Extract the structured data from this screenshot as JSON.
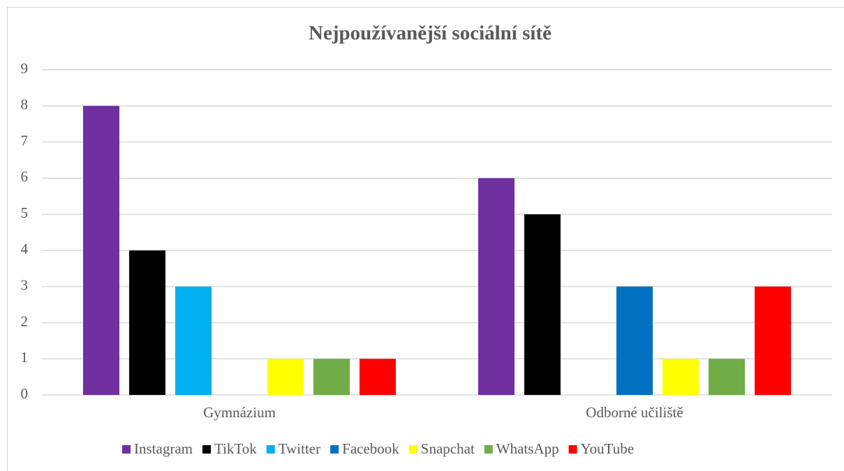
{
  "chart_data": {
    "type": "bar",
    "title": "Nejpoužívanější sociální sítě",
    "categories": [
      "Gymnázium",
      "Odborné učiliště"
    ],
    "series": [
      {
        "name": "Instagram",
        "color": "#7030a0",
        "values": [
          8,
          6
        ]
      },
      {
        "name": "TikTok",
        "color": "#000000",
        "values": [
          4,
          5
        ]
      },
      {
        "name": "Twitter",
        "color": "#00b0f0",
        "values": [
          3,
          0
        ]
      },
      {
        "name": "Facebook",
        "color": "#0070c0",
        "values": [
          0,
          3
        ]
      },
      {
        "name": "Snapchat",
        "color": "#ffff00",
        "values": [
          1,
          1
        ]
      },
      {
        "name": "WhatsApp",
        "color": "#70ad47",
        "values": [
          1,
          1
        ]
      },
      {
        "name": "YouTube",
        "color": "#ff0000",
        "values": [
          1,
          3
        ]
      }
    ],
    "ylim": [
      0,
      9
    ],
    "yticks": [
      0,
      1,
      2,
      3,
      4,
      5,
      6,
      7,
      8,
      9
    ],
    "grid": true,
    "legend": "bottom"
  }
}
